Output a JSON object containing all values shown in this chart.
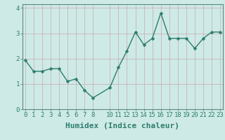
{
  "title": "",
  "xlabel": "Humidex (Indice chaleur)",
  "x": [
    0,
    1,
    2,
    3,
    4,
    5,
    6,
    7,
    8,
    10,
    11,
    12,
    13,
    14,
    15,
    16,
    17,
    18,
    19,
    20,
    21,
    22,
    23
  ],
  "y": [
    1.95,
    1.5,
    1.5,
    1.6,
    1.6,
    1.1,
    1.2,
    0.75,
    0.45,
    0.85,
    1.65,
    2.3,
    3.05,
    2.55,
    2.8,
    3.8,
    2.8,
    2.8,
    2.8,
    2.4,
    2.8,
    3.05,
    3.05
  ],
  "line_color": "#2e7d6e",
  "marker": "D",
  "marker_size": 2.5,
  "linewidth": 1.0,
  "bg_color": "#ceeae6",
  "grid_color": "#c8a8b0",
  "axis_bg": "#ceeae6",
  "ylim": [
    0,
    4.15
  ],
  "xlim": [
    -0.3,
    23.3
  ],
  "yticks": [
    0,
    1,
    2,
    3,
    4
  ],
  "xticks": [
    0,
    1,
    2,
    3,
    4,
    5,
    6,
    7,
    8,
    10,
    11,
    12,
    13,
    14,
    15,
    16,
    17,
    18,
    19,
    20,
    21,
    22,
    23
  ],
  "tick_fontsize": 6.5,
  "xlabel_fontsize": 8,
  "spine_color": "#5a8a80"
}
